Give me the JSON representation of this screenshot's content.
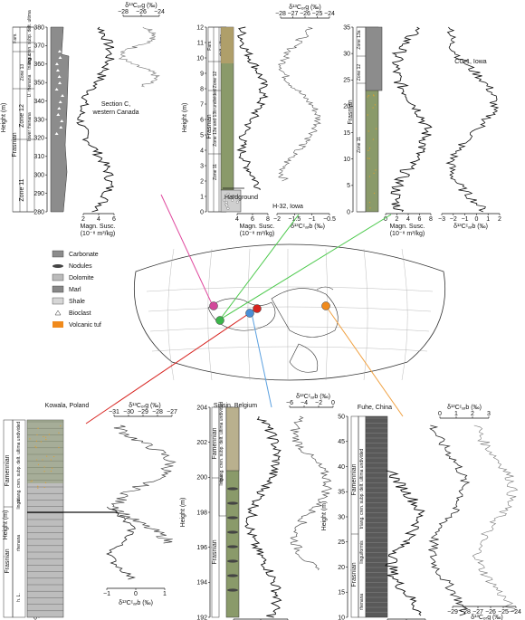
{
  "panels": {
    "sectionC": {
      "title_l1": "Section C,",
      "title_l2": "western Canada",
      "height_label": "Height (m)",
      "height_ticks": [
        "380",
        "370",
        "360",
        "350",
        "340",
        "330",
        "320",
        "310",
        "300",
        "290",
        "280"
      ],
      "ms_ticks": [
        "2",
        "4",
        "6"
      ],
      "ms_label_l1": "Magn. Susc.",
      "ms_label_l2": "(10⁻⁸ m³/kg)",
      "iso_label": "δ¹³Cₒᵣg (‰)",
      "iso_ticks": [
        "−28",
        "−26",
        "−24"
      ],
      "units": [
        "Fam.",
        "Frasnian"
      ],
      "zones": [
        "Zone 13",
        "Zone 12",
        "Zone 11"
      ],
      "sub": [
        "lingui.",
        "U. rhenana",
        "lower rhenana",
        "triang. cren. subp. delt. ultima"
      ]
    },
    "h32": {
      "title": "H-32, Iowa",
      "hardground": "Hardground",
      "height_label": "Height (m)",
      "height_ticks": [
        "12",
        "11",
        "10",
        "9",
        "8",
        "7",
        "6",
        "5",
        "4",
        "3",
        "2",
        "1",
        "0"
      ],
      "ms_ticks": [
        "4",
        "6",
        "8"
      ],
      "ms_label_l1": "Magn. Susc.",
      "ms_label_l2": "(10⁻⁸ m³/kg)",
      "iso_top_label": "δ¹³Cₒᵣg (‰)",
      "iso_top_ticks": [
        "−28",
        "−27",
        "−26",
        "−25",
        "−24"
      ],
      "iso_bot_label": "δ¹³Cᶜₐᵣb (‰)",
      "iso_bot_ticks": [
        "−2",
        "−1.5",
        "−1",
        "−0.5"
      ],
      "units": [
        "Fam.",
        "Frasnian"
      ],
      "zones": [
        "Zone 13a and 13b undivided",
        "Zone 12",
        "Zone 11"
      ],
      "sub": [
        "delt. ultima"
      ]
    },
    "cg1": {
      "title": "CG-1, Iowa",
      "height_ticks": [
        "35",
        "30",
        "25",
        "20",
        "15",
        "10",
        "5",
        "0"
      ],
      "ms_ticks": [
        "0",
        "2",
        "4",
        "6",
        "8"
      ],
      "ms_label_l1": "Magn. Susc.",
      "ms_label_l2": "(10⁻⁸ m³/kg)",
      "iso_ticks": [
        "−3",
        "−2",
        "−1",
        "0",
        "1",
        "2"
      ],
      "iso_label": "δ¹³Cᶜₐᵣb (‰)",
      "units": [
        "Frasnian"
      ],
      "zones": [
        "Zone 13a",
        "Zone 12",
        "Zone 11"
      ]
    },
    "kowala": {
      "title": "Kowala, Poland",
      "height_label": "Height (m)",
      "height_ticks": [
        "60",
        "40",
        "20",
        "0"
      ],
      "iso_top_label": "δ¹³Cₒᵣg (‰)",
      "iso_top_ticks": [
        "−31",
        "−30",
        "−29",
        "−28",
        "−27"
      ],
      "iso_bot_label": "δ¹³Cᶜₐᵣb (‰)",
      "iso_bot_ticks": [
        "−1",
        "0",
        "1"
      ],
      "units": [
        "Famennian",
        "Frasnian"
      ],
      "sub": [
        "triang. cren. subp. delt. ultima undivided",
        "lingui.",
        "rhenana",
        "h. L."
      ]
    },
    "sinsin": {
      "title": "Sinsin, Belgium",
      "height_label": "Height (m)",
      "height_ticks": [
        "204",
        "202",
        "200",
        "198",
        "196",
        "194",
        "192"
      ],
      "ms_ticks": [
        "0",
        "10",
        "20"
      ],
      "ms_label_l1": "Magn. Susc.",
      "ms_label_l2": "(10⁻⁸ m³/kg)",
      "iso_label": "δ¹³Cᶜₐᵣb (‰)",
      "iso_ticks": [
        "−6",
        "−4",
        "−2",
        "0"
      ],
      "units": [
        "Famennian",
        "Frasnian"
      ],
      "sub": [
        "triang. cren. subp. delt. ultima undivided",
        "lingui."
      ]
    },
    "fuhe": {
      "title": "Fuhe, China",
      "height_label": "Height (m)",
      "height_ticks": [
        "50",
        "45",
        "40",
        "35",
        "30",
        "25",
        "20",
        "15",
        "10"
      ],
      "ms_ticks": [
        "0",
        "5",
        "10"
      ],
      "ms_label_l1": "Magn. Susc.",
      "ms_label_l2": "(10⁻⁸ m³/kg)",
      "iso_top_label": "δ¹³Cᶜₐᵣb (‰)",
      "iso_top_ticks": [
        "0",
        "1",
        "2",
        "3"
      ],
      "iso_bot_label": "δ¹³Cₒᵣg (‰)",
      "iso_bot_ticks": [
        "−29",
        "−28",
        "−27",
        "−26",
        "−25",
        "−24"
      ],
      "units": [
        "Famennian",
        "Frasnian"
      ],
      "sub": [
        "triang. cren. subp. delt. ultima undivided",
        "linguiformis",
        "rhenana"
      ]
    }
  },
  "legend": {
    "items": [
      "Carbonate",
      "Nodules",
      "Dolomite",
      "Marl",
      "Shale",
      "Bioclast",
      "Volcanic tuf"
    ]
  },
  "colors": {
    "column_gray": "#8c8c8c",
    "column_dark": "#595959",
    "shale_green": "#8a9a6a",
    "sinsin_tan": "#b9b08e",
    "tuff_orange": "#f08a1c",
    "marker_magenta": "#d2489a",
    "marker_green": "#3bb54a",
    "marker_red": "#d7231f",
    "marker_blue": "#4a8fd6",
    "marker_orange": "#f08a1c",
    "line_magenta": "#e0499e",
    "line_green": "#4cc94c",
    "line_red": "#d7231f",
    "line_blue": "#5aa0e0",
    "line_orange": "#f0a040"
  }
}
